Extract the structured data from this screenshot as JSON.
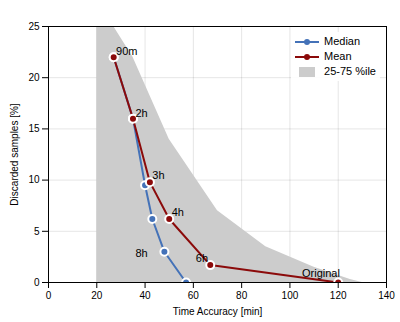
{
  "chart_data": {
    "type": "line",
    "xlabel": "Time Accuracy [min]",
    "ylabel": "Discarded samples [%]",
    "series": [
      {
        "name": "Median",
        "type": "line",
        "color": "#4472b8",
        "marker": "circle",
        "x": [
          27,
          35,
          40,
          43,
          48,
          57
        ],
        "values": [
          22,
          16,
          9.5,
          6.2,
          3.0,
          0.0
        ]
      },
      {
        "name": "Mean",
        "type": "line",
        "color": "#8b0a0a",
        "marker": "circle",
        "x": [
          27,
          35,
          42,
          50,
          67,
          120
        ],
        "values": [
          22,
          16,
          9.8,
          6.2,
          1.7,
          0.0
        ]
      },
      {
        "name": "25-75 %ile",
        "type": "area",
        "color": "#cccccc",
        "x": [
          20,
          20,
          27,
          35,
          50,
          70,
          90,
          110,
          125,
          130
        ],
        "values": [
          0,
          25,
          25,
          22,
          14,
          7,
          3.5,
          1.5,
          0.3,
          0
        ]
      }
    ],
    "annotations": [
      {
        "text": "90m",
        "x": 28,
        "y": 22.2
      },
      {
        "text": "2h",
        "x": 36,
        "y": 16.2
      },
      {
        "text": "3h",
        "x": 43,
        "y": 10.1
      },
      {
        "text": "4h",
        "x": 51,
        "y": 6.5
      },
      {
        "text": "8h",
        "x": 36,
        "y": 2.5
      },
      {
        "text": "6h",
        "x": 61,
        "y": 2.0
      },
      {
        "text": "Original",
        "x": 105,
        "y": 0.5
      }
    ],
    "xlim": [
      0,
      140
    ],
    "ylim": [
      0,
      25
    ],
    "xticks": [
      0,
      20,
      40,
      60,
      80,
      100,
      120,
      140
    ],
    "yticks": [
      0,
      5,
      10,
      15,
      20,
      25
    ],
    "grid": true,
    "legend": "upper right"
  }
}
